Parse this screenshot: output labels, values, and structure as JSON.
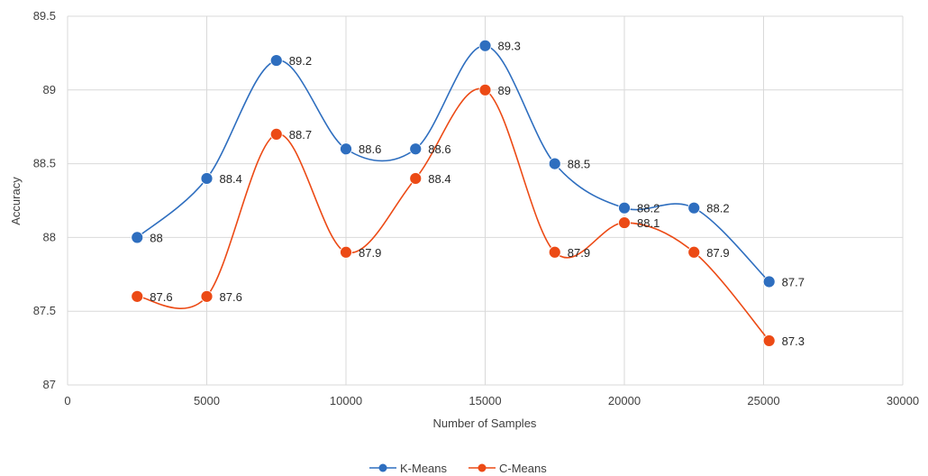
{
  "chart_data": {
    "type": "line",
    "title": "",
    "xlabel": "Number of Samples",
    "ylabel": "Accuracy",
    "xlim": [
      0,
      30000
    ],
    "ylim": [
      87,
      89.5
    ],
    "x_ticks": [
      0,
      5000,
      10000,
      15000,
      20000,
      25000,
      30000
    ],
    "y_ticks": [
      87,
      87.5,
      88,
      88.5,
      89,
      89.5
    ],
    "x_tick_labels": [
      "0",
      "5000",
      "10000",
      "15000",
      "20000",
      "25000",
      "30000"
    ],
    "y_tick_labels": [
      "87",
      "87.5",
      "88",
      "88.5",
      "89",
      "89.5"
    ],
    "grid": true,
    "legend_position": "bottom-center",
    "series": [
      {
        "name": "K-Means",
        "color": "#2e6ebf",
        "x": [
          2500,
          5000,
          7500,
          10000,
          12500,
          15000,
          17500,
          20000,
          22500,
          25200
        ],
        "values": [
          88,
          88.4,
          89.2,
          88.6,
          88.6,
          89.3,
          88.5,
          88.2,
          88.2,
          87.7
        ],
        "labels": [
          "88",
          "88.4",
          "89.2",
          "88.6",
          "88.6",
          "89.3",
          "88.5",
          "88.2",
          "88.2",
          "87.7"
        ]
      },
      {
        "name": "C-Means",
        "color": "#ec4a15",
        "x": [
          2500,
          5000,
          7500,
          10000,
          12500,
          15000,
          17500,
          20000,
          22500,
          25200
        ],
        "values": [
          87.6,
          87.6,
          88.7,
          87.9,
          88.4,
          89,
          87.9,
          88.1,
          87.9,
          87.3
        ],
        "labels": [
          "87.6",
          "87.6",
          "88.7",
          "87.9",
          "88.4",
          "89",
          "87.9",
          "88.1",
          "87.9",
          "87.3"
        ]
      }
    ]
  }
}
